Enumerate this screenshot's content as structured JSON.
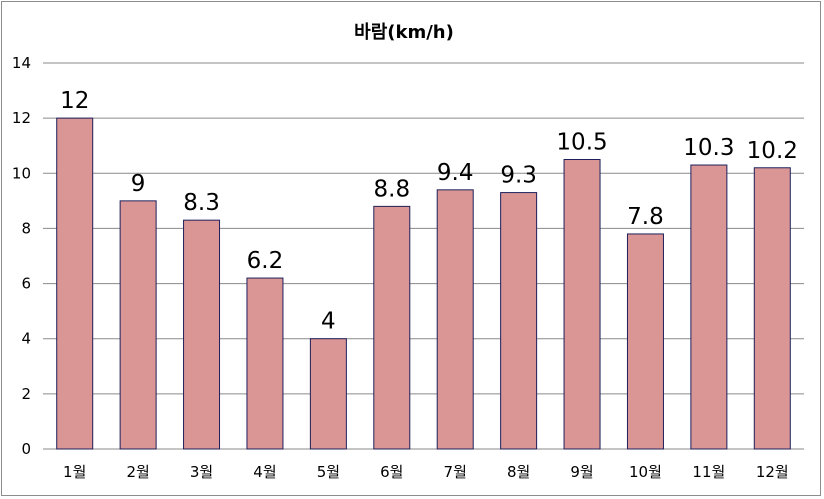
{
  "chart_data": {
    "type": "bar",
    "title": "바람(km/h)",
    "xlabel": "",
    "ylabel": "",
    "categories": [
      "1월",
      "2월",
      "3월",
      "4월",
      "5월",
      "6월",
      "7월",
      "8월",
      "9월",
      "10월",
      "11월",
      "12월"
    ],
    "values": [
      12,
      9,
      8.3,
      6.2,
      4,
      8.8,
      9.4,
      9.3,
      10.5,
      7.8,
      10.3,
      10.2
    ],
    "data_labels": [
      "12",
      "9",
      "8.3",
      "6.2",
      "4",
      "8.8",
      "9.4",
      "9.3",
      "10.5",
      "7.8",
      "10.3",
      "10.2"
    ],
    "ylim": [
      0,
      14
    ],
    "yticks": [
      "0",
      "2",
      "4",
      "6",
      "8",
      "10",
      "12",
      "14"
    ],
    "grid": true,
    "legend": "none",
    "bar_color": "#d99694",
    "bar_border_color": "#1f1f5c",
    "grid_color": "#8a8a8a"
  }
}
